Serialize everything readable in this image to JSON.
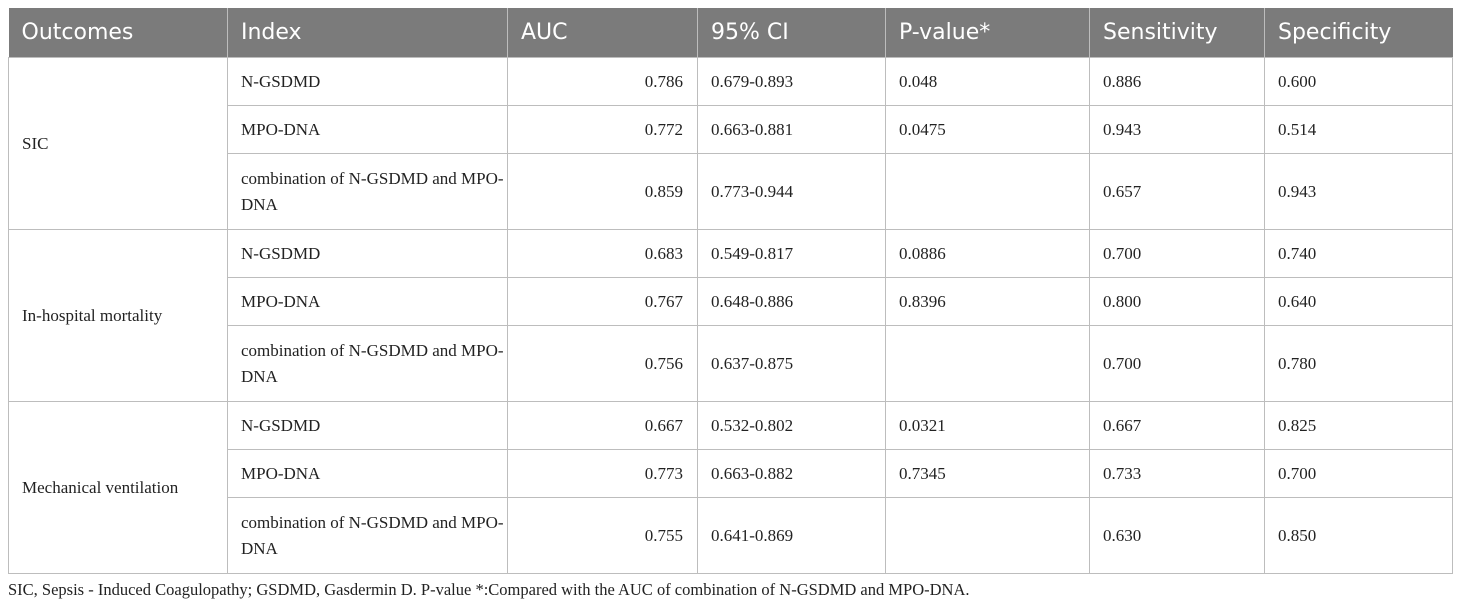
{
  "table": {
    "headers": [
      "Outcomes",
      "Index",
      "AUC",
      "95% CI",
      "P-value*",
      "Sensitivity",
      "Specificity"
    ],
    "groups": [
      {
        "outcome": "SIC",
        "rows": [
          {
            "index": "N-GSDMD",
            "auc": "0.786",
            "ci": "0.679-0.893",
            "p": "0.048",
            "sens": "0.886",
            "spec": "0.600"
          },
          {
            "index": "MPO-DNA",
            "auc": "0.772",
            "ci": "0.663-0.881",
            "p": "0.0475",
            "sens": "0.943",
            "spec": "0.514"
          },
          {
            "index": "combination of N-GSDMD and MPO-DNA",
            "auc": "0.859",
            "ci": "0.773-0.944",
            "p": "",
            "sens": "0.657",
            "spec": "0.943"
          }
        ]
      },
      {
        "outcome": "In-hospital mortality",
        "rows": [
          {
            "index": "N-GSDMD",
            "auc": "0.683",
            "ci": "0.549-0.817",
            "p": "0.0886",
            "sens": "0.700",
            "spec": "0.740"
          },
          {
            "index": "MPO-DNA",
            "auc": "0.767",
            "ci": "0.648-0.886",
            "p": "0.8396",
            "sens": "0.800",
            "spec": "0.640"
          },
          {
            "index": "combination of N-GSDMD and MPO-DNA",
            "auc": "0.756",
            "ci": "0.637-0.875",
            "p": "",
            "sens": "0.700",
            "spec": "0.780"
          }
        ]
      },
      {
        "outcome": "Mechanical ventilation",
        "rows": [
          {
            "index": "N-GSDMD",
            "auc": "0.667",
            "ci": "0.532-0.802",
            "p": "0.0321",
            "sens": "0.667",
            "spec": "0.825"
          },
          {
            "index": "MPO-DNA",
            "auc": "0.773",
            "ci": "0.663-0.882",
            "p": "0.7345",
            "sens": "0.733",
            "spec": "0.700"
          },
          {
            "index": "combination of N-GSDMD and MPO-DNA",
            "auc": "0.755",
            "ci": "0.641-0.869",
            "p": "",
            "sens": "0.630",
            "spec": "0.850"
          }
        ]
      }
    ]
  },
  "footnote": "SIC, Sepsis - Induced Coagulopathy; GSDMD, Gasdermin D. P-value *:Compared with the AUC of combination of N-GSDMD and MPO-DNA."
}
